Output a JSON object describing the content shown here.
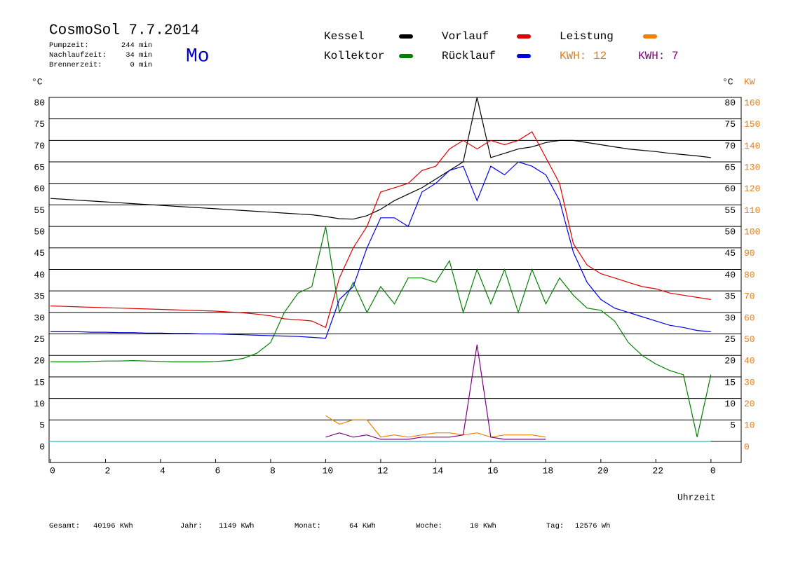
{
  "chart_data": {
    "type": "line",
    "title": "CosmoSol 7.7.2014",
    "weekday": "Mo",
    "info": [
      {
        "label": "Pumpzeit:",
        "value": "244 min"
      },
      {
        "label": "Nachlaufzeit:",
        "value": "34 min"
      },
      {
        "label": "Brennerzeit:",
        "value": "0 min"
      }
    ],
    "y_label": "°C",
    "y2_label_c": "°C",
    "y2_label": "KW",
    "x_label": "Uhrzeit",
    "kwh_labels": [
      {
        "text": "KWH: 12",
        "color": "#e08020"
      },
      {
        "text": "KWH: 7",
        "color": "#800080"
      }
    ],
    "totals": [
      {
        "label": "Gesamt:",
        "value": "40196 KWh"
      },
      {
        "label": "Jahr:",
        "value": "1149 KWh"
      },
      {
        "label": "Monat:",
        "value": "64 KWh"
      },
      {
        "label": "Woche:",
        "value": "10 KWh"
      },
      {
        "label": "Tag:",
        "value": "12576 Wh"
      }
    ],
    "x": [
      0,
      0.5,
      1,
      1.5,
      2,
      2.5,
      3,
      3.5,
      4,
      4.5,
      5,
      5.5,
      6,
      6.5,
      7,
      7.5,
      8,
      8.5,
      9,
      9.5,
      10,
      10.5,
      11,
      11.5,
      12,
      12.5,
      13,
      13.5,
      14,
      14.5,
      15,
      15.5,
      16,
      16.5,
      17,
      17.5,
      18,
      18.5,
      19,
      19.5,
      20,
      20.5,
      21,
      21.5,
      22,
      22.5,
      23,
      23.5,
      24
    ],
    "xlim": [
      -0.05,
      25.1
    ],
    "xticks": [
      0,
      2,
      4,
      6,
      8,
      10,
      12,
      14,
      16,
      18,
      20,
      22,
      {
        "value": 24,
        "label": "0"
      }
    ],
    "ylim": [
      -4.9,
      80
    ],
    "yticks": [
      0,
      5,
      10,
      15,
      20,
      25,
      30,
      35,
      40,
      45,
      50,
      55,
      60,
      65,
      70,
      75,
      80
    ],
    "y_right_ticks": [
      5,
      10,
      15,
      20,
      25,
      30,
      35,
      40,
      45,
      50,
      55,
      60,
      65,
      70,
      75,
      80
    ],
    "y2lim": [
      -9.8,
      160
    ],
    "y2ticks": [
      0,
      10,
      20,
      30,
      40,
      50,
      60,
      70,
      80,
      90,
      100,
      110,
      120,
      130,
      140,
      150,
      160
    ],
    "baseline_color": "#40d0d0",
    "grid": true,
    "series": [
      {
        "name": "Kessel",
        "color": "#000000",
        "values": [
          56.5,
          56.3,
          56.1,
          55.9,
          55.7,
          55.5,
          55.3,
          55.1,
          54.9,
          54.7,
          54.5,
          54.3,
          54.1,
          53.9,
          53.7,
          53.5,
          53.3,
          53.1,
          52.9,
          52.7,
          52.3,
          51.8,
          51.7,
          52.5,
          54,
          56,
          57.5,
          59,
          61,
          63,
          65,
          80,
          66,
          67,
          68,
          68.5,
          69.5,
          70,
          70,
          69.5,
          69,
          68.5,
          68,
          67.7,
          67.4,
          67,
          66.7,
          66.4,
          66
        ]
      },
      {
        "name": "Vorlauf",
        "color": "#e00000",
        "values": [
          31.5,
          31.4,
          31.3,
          31.2,
          31.1,
          31,
          30.9,
          30.8,
          30.7,
          30.6,
          30.5,
          30.4,
          30.3,
          30.1,
          29.9,
          29.6,
          29.2,
          28.5,
          28.3,
          28,
          26.5,
          38,
          45,
          50,
          58,
          59,
          60,
          63,
          64,
          68,
          70,
          68,
          70,
          69,
          70,
          72,
          66,
          60,
          46,
          41,
          39,
          38,
          37,
          36,
          35.5,
          34.5,
          34,
          33.5,
          33
        ]
      },
      {
        "name": "Leistung",
        "color": "#f08000",
        "axis": "y2",
        "values": [
          null,
          null,
          null,
          null,
          null,
          null,
          null,
          null,
          null,
          null,
          null,
          null,
          null,
          null,
          null,
          null,
          null,
          null,
          null,
          null,
          12,
          8,
          10,
          10,
          2,
          3,
          2,
          3,
          4,
          4,
          3,
          4,
          2,
          3,
          3,
          3,
          2,
          null,
          null,
          null,
          null,
          null,
          null,
          null,
          null,
          null,
          null,
          null,
          null
        ]
      },
      {
        "name": "Kollektor",
        "color": "#008000",
        "values": [
          18.5,
          18.5,
          18.5,
          18.6,
          18.7,
          18.7,
          18.8,
          18.7,
          18.6,
          18.5,
          18.5,
          18.5,
          18.6,
          18.8,
          19.3,
          20.5,
          23,
          30,
          34.5,
          36,
          50,
          30,
          37,
          30,
          36,
          32,
          38,
          38,
          37,
          42,
          30,
          40,
          32,
          40,
          30,
          40,
          32,
          38,
          34,
          31,
          30.5,
          28,
          23,
          20,
          18,
          16.5,
          15.5,
          1,
          15.5
        ]
      },
      {
        "name": "Rücklauf",
        "color": "#0000e0",
        "values": [
          25.5,
          25.5,
          25.5,
          25.4,
          25.4,
          25.3,
          25.3,
          25.2,
          25.2,
          25.1,
          25.1,
          25,
          25,
          24.9,
          24.8,
          24.7,
          24.6,
          24.5,
          24.4,
          24.2,
          24,
          33,
          36,
          45,
          52,
          52,
          50,
          58,
          60,
          63,
          64,
          56,
          64,
          62,
          65,
          64,
          62,
          56,
          44,
          37,
          33,
          31,
          30,
          29,
          28,
          27,
          26.5,
          25.8,
          25.5
        ]
      },
      {
        "color": "#800080",
        "axis": "y2",
        "values": [
          null,
          null,
          null,
          null,
          null,
          null,
          null,
          null,
          null,
          null,
          null,
          null,
          null,
          null,
          null,
          null,
          null,
          null,
          null,
          null,
          2,
          4,
          2,
          3,
          1,
          1,
          1,
          2,
          2,
          2,
          3,
          45,
          2,
          1,
          1,
          1,
          1,
          null,
          null,
          null,
          null,
          null,
          null,
          null,
          null,
          null,
          null,
          null,
          null
        ]
      }
    ]
  }
}
